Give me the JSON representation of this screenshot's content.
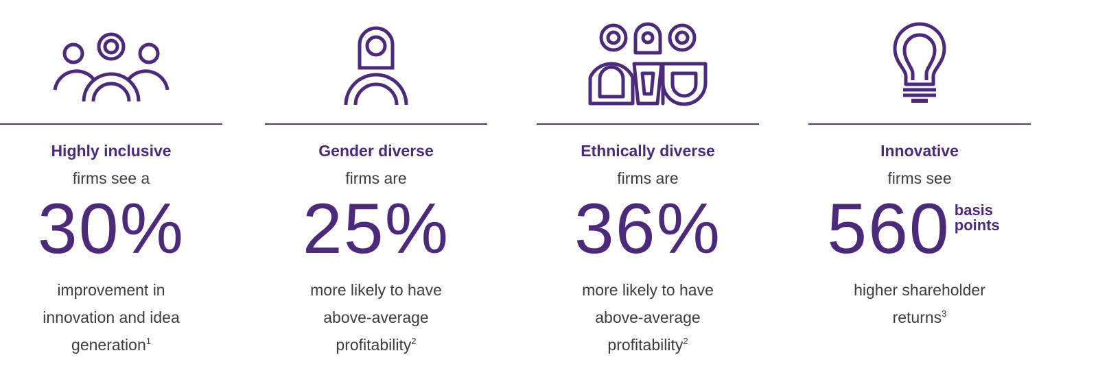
{
  "colors": {
    "accent": "#4b2a7a",
    "body_text": "#3c3c3c",
    "divider": "#4a3b6b",
    "background": "#ffffff"
  },
  "stats": [
    {
      "icon": "group-of-people-icon",
      "headline": "Highly inclusive",
      "lead": "firms see a",
      "figure": "30%",
      "unit": "",
      "detail_lines": [
        "improvement in",
        "innovation and idea",
        "generation"
      ],
      "footnote": "1"
    },
    {
      "icon": "person-icon",
      "headline": "Gender diverse",
      "lead": "firms are",
      "figure": "25%",
      "unit": "",
      "detail_lines": [
        "more likely to have",
        "above-average",
        "profitability"
      ],
      "footnote": "2"
    },
    {
      "icon": "three-people-icon",
      "headline": "Ethnically diverse",
      "lead": "firms are",
      "figure": "36%",
      "unit": "",
      "detail_lines": [
        "more likely to have",
        "above-average",
        "profitability"
      ],
      "footnote": "2"
    },
    {
      "icon": "lightbulb-icon",
      "headline": "Innovative",
      "lead": "firms see",
      "figure": "560",
      "unit": "basis points",
      "detail_lines": [
        "higher shareholder",
        "returns"
      ],
      "footnote": "3"
    }
  ]
}
